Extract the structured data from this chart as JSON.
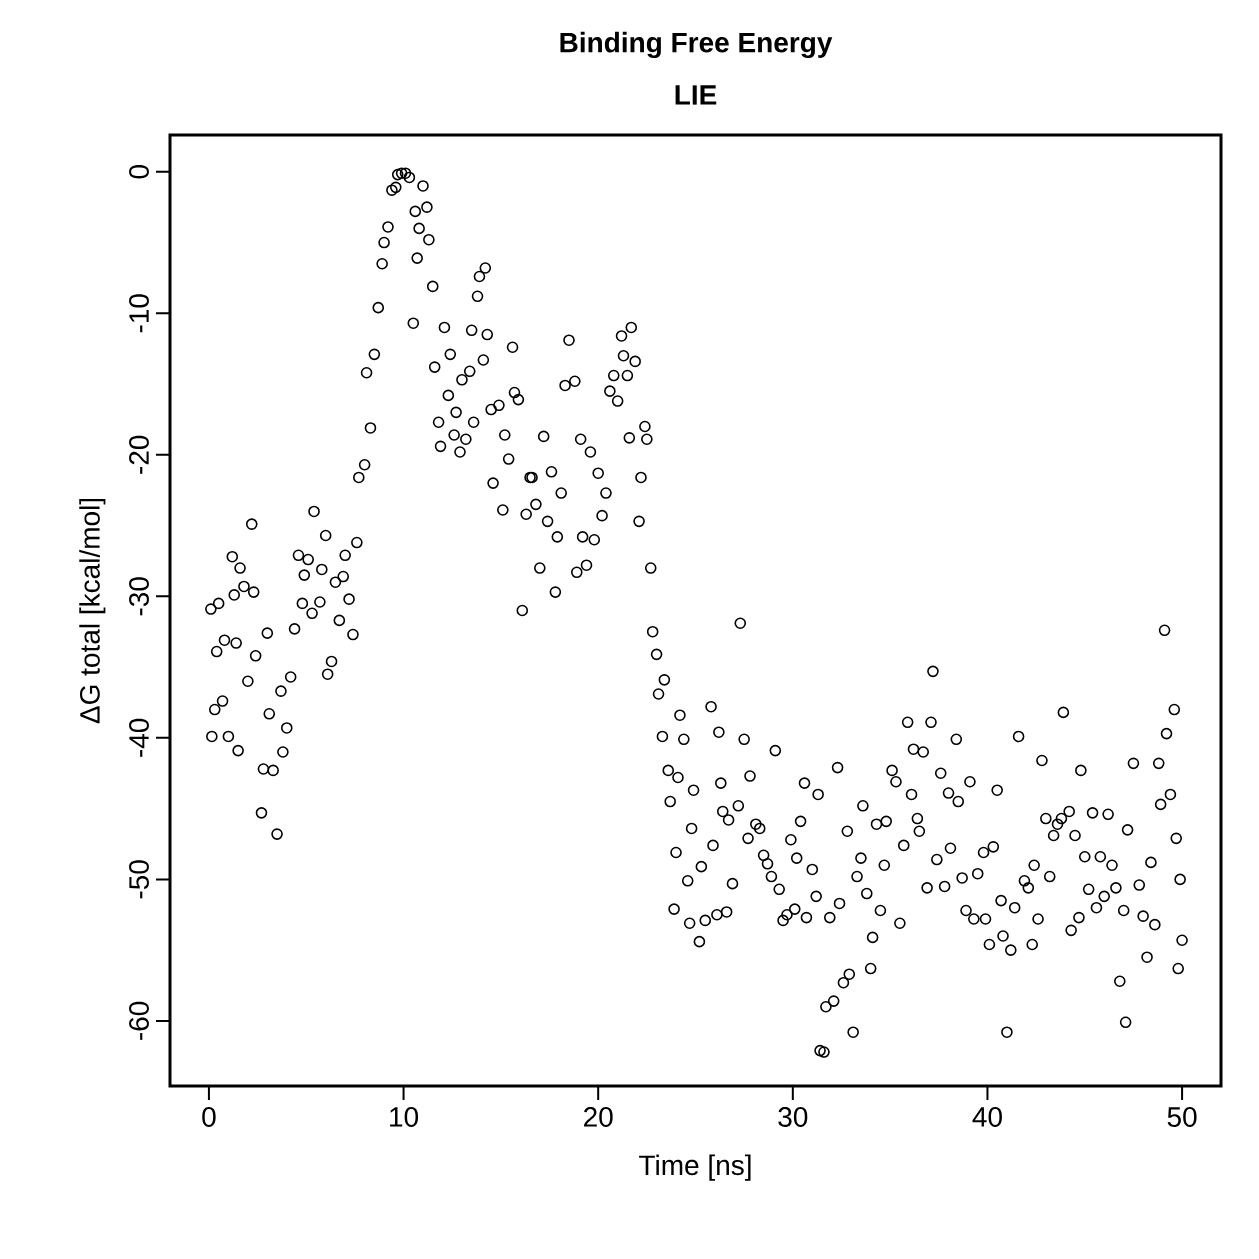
{
  "chart_data": {
    "type": "scatter",
    "title": "Binding Free Energy",
    "subtitle": "LIE",
    "xlabel": "Time [ns]",
    "ylabel": "ΔG total [kcal/mol]",
    "xlim": [
      -2,
      52
    ],
    "ylim": [
      -64.6,
      2.6
    ],
    "xticks": [
      0,
      10,
      20,
      30,
      40,
      50
    ],
    "yticks": [
      0,
      -10,
      -20,
      -30,
      -40,
      -50,
      -60
    ],
    "marker": "circle",
    "series": [
      {
        "color": "#000000",
        "x": [
          0.1,
          0.15,
          0.3,
          0.4,
          0.5,
          0.7,
          0.8,
          1.0,
          1.2,
          1.3,
          1.4,
          1.5,
          1.6,
          1.8,
          2.0,
          2.2,
          2.3,
          2.4,
          2.7,
          2.8,
          3.0,
          3.1,
          3.3,
          3.5,
          3.7,
          3.8,
          4.0,
          4.2,
          4.4,
          4.6,
          4.8,
          4.9,
          5.1,
          5.3,
          5.4,
          5.7,
          5.8,
          6.0,
          6.1,
          6.3,
          6.5,
          6.7,
          6.9,
          7.0,
          7.2,
          7.4,
          7.6,
          7.7,
          8.0,
          8.1,
          8.3,
          8.5,
          8.7,
          8.9,
          9.0,
          9.2,
          9.4,
          9.6,
          9.7,
          9.9,
          10.1,
          10.3,
          10.5,
          10.6,
          10.7,
          10.8,
          11.0,
          11.2,
          11.3,
          11.5,
          11.6,
          11.8,
          11.9,
          12.1,
          12.3,
          12.4,
          12.6,
          12.7,
          12.9,
          13.0,
          13.2,
          13.4,
          13.5,
          13.6,
          13.8,
          13.9,
          14.1,
          14.2,
          14.3,
          14.5,
          14.6,
          14.9,
          15.1,
          15.2,
          15.4,
          15.6,
          15.7,
          15.9,
          16.1,
          16.3,
          16.5,
          16.6,
          16.8,
          17.0,
          17.2,
          17.4,
          17.6,
          17.8,
          17.9,
          18.1,
          18.3,
          18.5,
          18.8,
          18.9,
          19.1,
          19.2,
          19.4,
          19.6,
          19.8,
          20.0,
          20.2,
          20.4,
          20.6,
          20.8,
          21.0,
          21.2,
          21.3,
          21.5,
          21.6,
          21.7,
          21.9,
          22.1,
          22.2,
          22.4,
          22.5,
          22.7,
          22.8,
          23.0,
          23.1,
          23.3,
          23.4,
          23.6,
          23.7,
          23.9,
          24.0,
          24.1,
          24.2,
          24.4,
          24.6,
          24.7,
          24.8,
          24.9,
          25.2,
          25.3,
          25.5,
          25.8,
          25.9,
          26.1,
          26.2,
          26.3,
          26.4,
          26.6,
          26.7,
          26.9,
          27.2,
          27.3,
          27.5,
          27.7,
          27.8,
          28.1,
          28.3,
          28.5,
          28.7,
          28.9,
          29.1,
          29.3,
          29.5,
          29.7,
          29.9,
          30.1,
          30.2,
          30.4,
          30.6,
          30.7,
          31.0,
          31.2,
          31.3,
          31.4,
          31.6,
          31.7,
          31.9,
          32.1,
          32.3,
          32.4,
          32.6,
          32.8,
          32.9,
          33.1,
          33.3,
          33.5,
          33.6,
          33.8,
          34.0,
          34.1,
          34.3,
          34.5,
          34.7,
          34.8,
          35.1,
          35.3,
          35.5,
          35.7,
          35.9,
          36.1,
          36.2,
          36.4,
          36.5,
          36.7,
          36.9,
          37.1,
          37.2,
          37.4,
          37.6,
          37.8,
          38.0,
          38.1,
          38.4,
          38.5,
          38.7,
          38.9,
          39.1,
          39.3,
          39.5,
          39.8,
          39.9,
          40.1,
          40.3,
          40.5,
          40.7,
          40.8,
          41.0,
          41.2,
          41.4,
          41.6,
          41.9,
          42.1,
          42.3,
          42.4,
          42.6,
          42.8,
          43.0,
          43.2,
          43.4,
          43.6,
          43.8,
          43.9,
          44.2,
          44.3,
          44.5,
          44.7,
          44.8,
          45.0,
          45.2,
          45.4,
          45.6,
          45.8,
          46.0,
          46.2,
          46.4,
          46.6,
          46.8,
          47.0,
          47.1,
          47.2,
          47.5,
          47.8,
          48.0,
          48.2,
          48.4,
          48.6,
          48.8,
          48.9,
          49.1,
          49.2,
          49.4,
          49.6,
          49.7,
          49.8,
          49.9,
          50.0
        ],
        "values": [
          -30.9,
          -39.9,
          -38.0,
          -33.9,
          -30.5,
          -37.4,
          -33.1,
          -39.9,
          -27.2,
          -29.9,
          -33.3,
          -40.9,
          -28.0,
          -29.3,
          -36.0,
          -24.9,
          -29.7,
          -34.2,
          -45.3,
          -42.2,
          -32.6,
          -38.3,
          -42.3,
          -46.8,
          -36.7,
          -41.0,
          -39.3,
          -35.7,
          -32.3,
          -27.1,
          -30.5,
          -28.5,
          -27.4,
          -31.2,
          -24.0,
          -30.4,
          -28.1,
          -25.7,
          -35.5,
          -34.6,
          -29.0,
          -31.7,
          -28.6,
          -27.1,
          -30.2,
          -32.7,
          -26.2,
          -21.6,
          -20.7,
          -14.2,
          -18.1,
          -12.9,
          -9.6,
          -6.5,
          -5.0,
          -3.9,
          -1.3,
          -1.1,
          -0.2,
          -0.1,
          -0.1,
          -0.4,
          -10.7,
          -2.8,
          -6.1,
          -4.0,
          -1.0,
          -2.5,
          -4.8,
          -8.1,
          -13.8,
          -17.7,
          -19.4,
          -11.0,
          -15.8,
          -12.9,
          -18.6,
          -17.0,
          -19.8,
          -14.7,
          -18.9,
          -14.1,
          -11.2,
          -17.7,
          -8.8,
          -7.4,
          -13.3,
          -6.8,
          -11.5,
          -16.8,
          -22.0,
          -16.5,
          -23.9,
          -18.6,
          -20.3,
          -12.4,
          -15.6,
          -16.1,
          -31.0,
          -24.2,
          -21.6,
          -21.6,
          -23.5,
          -28.0,
          -18.7,
          -24.7,
          -21.2,
          -29.7,
          -25.8,
          -22.7,
          -15.1,
          -11.9,
          -14.8,
          -28.3,
          -18.9,
          -25.8,
          -27.8,
          -19.8,
          -26.0,
          -21.3,
          -24.3,
          -22.7,
          -15.5,
          -14.4,
          -16.2,
          -11.6,
          -13.0,
          -14.4,
          -18.8,
          -11.0,
          -13.4,
          -24.7,
          -21.6,
          -18.0,
          -18.9,
          -28.0,
          -32.5,
          -34.1,
          -36.9,
          -39.9,
          -35.9,
          -42.3,
          -44.5,
          -52.1,
          -48.1,
          -42.8,
          -38.4,
          -40.1,
          -50.1,
          -53.1,
          -46.4,
          -43.7,
          -54.4,
          -49.1,
          -52.9,
          -37.8,
          -47.6,
          -52.5,
          -39.6,
          -43.2,
          -45.2,
          -52.3,
          -45.8,
          -50.3,
          -44.8,
          -31.9,
          -40.1,
          -47.1,
          -42.7,
          -46.1,
          -46.4,
          -48.3,
          -48.9,
          -49.8,
          -40.9,
          -50.7,
          -52.9,
          -52.5,
          -47.2,
          -52.1,
          -48.5,
          -45.9,
          -43.2,
          -52.7,
          -49.3,
          -51.2,
          -44.0,
          -62.1,
          -62.2,
          -59.0,
          -52.7,
          -58.6,
          -42.1,
          -51.7,
          -57.3,
          -46.6,
          -56.7,
          -60.8,
          -49.8,
          -48.5,
          -44.8,
          -51.0,
          -56.3,
          -54.1,
          -46.1,
          -52.2,
          -49.0,
          -45.9,
          -42.3,
          -43.1,
          -53.1,
          -47.6,
          -38.9,
          -44.0,
          -40.8,
          -45.7,
          -46.6,
          -41.0,
          -50.6,
          -38.9,
          -35.3,
          -48.6,
          -42.5,
          -50.5,
          -43.9,
          -47.8,
          -40.1,
          -44.5,
          -49.9,
          -52.2,
          -43.1,
          -52.8,
          -49.6,
          -48.1,
          -52.8,
          -54.6,
          -47.7,
          -43.7,
          -51.5,
          -54.0,
          -60.8,
          -55.0,
          -52.0,
          -39.9,
          -50.1,
          -50.6,
          -54.6,
          -49.0,
          -52.8,
          -41.6,
          -45.7,
          -49.8,
          -46.9,
          -46.1,
          -45.7,
          -38.2,
          -45.2,
          -53.6,
          -46.9,
          -52.7,
          -42.3,
          -48.4,
          -50.7,
          -45.3,
          -52.0,
          -48.4,
          -51.2,
          -45.4,
          -49.0,
          -50.6,
          -57.2,
          -52.2,
          -60.1,
          -46.5,
          -41.8,
          -50.4,
          -52.6,
          -55.5,
          -48.8,
          -53.2,
          -41.8,
          -44.7,
          -32.4,
          -39.7,
          -44.0,
          -38.0,
          -47.1,
          -56.3,
          -50.0,
          -54.3
        ]
      }
    ]
  }
}
